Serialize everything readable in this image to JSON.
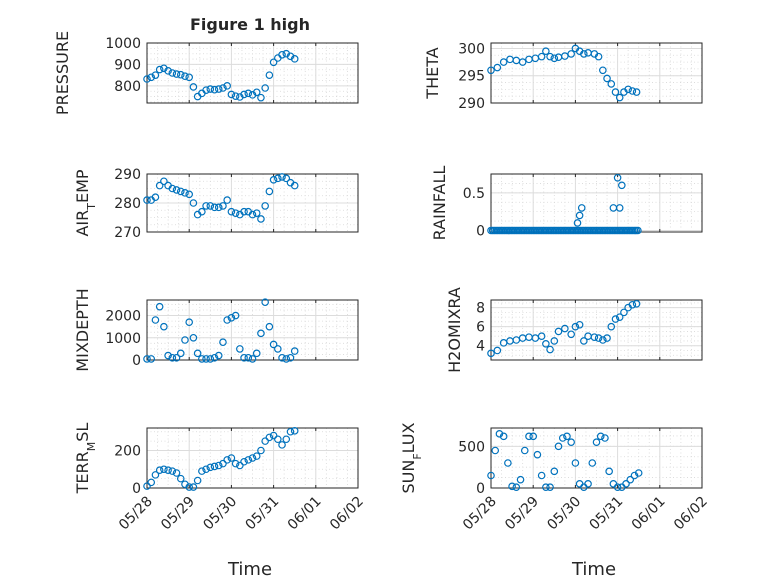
{
  "figure": {
    "title": "Figure 1 high",
    "x_tick_labels": [
      "05/28",
      "05/29",
      "05/30",
      "05/31",
      "06/01",
      "06/02"
    ],
    "x_label": "Time"
  },
  "chart_data": [
    {
      "type": "scatter",
      "ylabel": "PRESSURE",
      "ylim": [
        720,
        1000
      ],
      "yticks": [
        800,
        900,
        1000
      ],
      "xlim_days": [
        "05/28",
        "06/02"
      ],
      "grid": true,
      "minor_grid": true,
      "title": "Figure 1 high",
      "series": [
        {
          "x": [
            0,
            0.1,
            0.2,
            0.3,
            0.4,
            0.5,
            0.6,
            0.7,
            0.8,
            0.9,
            1.0,
            1.1,
            1.2,
            1.3,
            1.4,
            1.5,
            1.6,
            1.7,
            1.8,
            1.9,
            2.0,
            2.1,
            2.2,
            2.3,
            2.4,
            2.5,
            2.6,
            2.7,
            2.8,
            2.9,
            3.0,
            3.1,
            3.2,
            3.3,
            3.4,
            3.5
          ],
          "y": [
            832,
            840,
            850,
            876,
            882,
            870,
            860,
            855,
            852,
            845,
            840,
            795,
            750,
            765,
            780,
            785,
            782,
            785,
            790,
            800,
            760,
            752,
            748,
            760,
            765,
            758,
            770,
            745,
            790,
            850,
            910,
            930,
            945,
            950,
            938,
            926
          ]
        }
      ]
    },
    {
      "type": "scatter",
      "ylabel": "THETA",
      "ylim": [
        290,
        301
      ],
      "yticks": [
        290,
        295,
        300
      ],
      "grid": true,
      "minor_grid": true,
      "series": [
        {
          "x": [
            0,
            0.15,
            0.3,
            0.45,
            0.6,
            0.75,
            0.9,
            1.05,
            1.2,
            1.3,
            1.4,
            1.5,
            1.6,
            1.75,
            1.9,
            2.0,
            2.1,
            2.2,
            2.3,
            2.45,
            2.55,
            2.65,
            2.75,
            2.85,
            2.95,
            3.05,
            3.15,
            3.25,
            3.35,
            3.45
          ],
          "y": [
            296,
            296.5,
            297.5,
            298,
            297.8,
            297.5,
            298,
            298.2,
            298.5,
            299.5,
            298.5,
            298.2,
            298.4,
            298.6,
            299,
            300,
            299.5,
            299,
            299.2,
            299,
            298.5,
            296,
            294.5,
            293.5,
            292,
            291,
            292,
            292.5,
            292.2,
            292
          ]
        }
      ]
    },
    {
      "type": "scatter",
      "ylabel": "AIR_TEMP",
      "ylim": [
        270,
        290
      ],
      "yticks": [
        270,
        280,
        290
      ],
      "grid": true,
      "minor_grid": true,
      "series": [
        {
          "x": [
            0,
            0.1,
            0.2,
            0.3,
            0.4,
            0.5,
            0.6,
            0.7,
            0.8,
            0.9,
            1.0,
            1.1,
            1.2,
            1.3,
            1.4,
            1.5,
            1.6,
            1.7,
            1.8,
            1.9,
            2.0,
            2.1,
            2.2,
            2.3,
            2.4,
            2.5,
            2.6,
            2.7,
            2.8,
            2.9,
            3.0,
            3.1,
            3.2,
            3.3,
            3.4,
            3.5
          ],
          "y": [
            281,
            281,
            282,
            286,
            287.5,
            286,
            285,
            284.5,
            284,
            283.5,
            283,
            280,
            276,
            277,
            279,
            279,
            278.5,
            278.5,
            279,
            281,
            277,
            276.5,
            276,
            277,
            277,
            276,
            276.5,
            274.5,
            279,
            284,
            288,
            288.5,
            289,
            288.5,
            287,
            286
          ]
        }
      ]
    },
    {
      "type": "scatter",
      "ylabel": "RAINFALL",
      "ylim": [
        -0.02,
        0.75
      ],
      "yticks": [
        0,
        0.5
      ],
      "grid": true,
      "minor_grid": true,
      "series": [
        {
          "x": [
            2.05,
            2.1,
            2.15,
            2.9,
            3.0,
            3.05,
            3.1
          ],
          "y": [
            0.1,
            0.2,
            0.3,
            0.3,
            0.7,
            0.3,
            0.6
          ]
        }
      ]
    },
    {
      "type": "scatter",
      "ylabel": "MIXDEPTH",
      "ylim": [
        0,
        2700
      ],
      "yticks": [
        0,
        1000,
        2000
      ],
      "grid": true,
      "minor_grid": true,
      "series": [
        {
          "x": [
            0,
            0.1,
            0.2,
            0.3,
            0.4,
            0.5,
            0.6,
            0.7,
            0.8,
            0.9,
            1.0,
            1.1,
            1.2,
            1.3,
            1.4,
            1.5,
            1.6,
            1.7,
            1.8,
            1.9,
            2.0,
            2.1,
            2.2,
            2.3,
            2.4,
            2.5,
            2.6,
            2.7,
            2.8,
            2.9,
            3.0,
            3.1,
            3.2,
            3.3,
            3.4,
            3.5
          ],
          "y": [
            50,
            50,
            1800,
            2400,
            1500,
            200,
            100,
            100,
            300,
            900,
            1700,
            1000,
            300,
            50,
            50,
            50,
            100,
            200,
            800,
            1800,
            1900,
            2000,
            500,
            100,
            100,
            50,
            300,
            1200,
            2600,
            1500,
            700,
            500,
            100,
            50,
            100,
            400
          ]
        }
      ]
    },
    {
      "type": "scatter",
      "ylabel": "H2OMIXRA",
      "ylim": [
        2.5,
        8.8
      ],
      "yticks": [
        4,
        6,
        8
      ],
      "grid": true,
      "minor_grid": true,
      "series": [
        {
          "x": [
            0,
            0.15,
            0.3,
            0.45,
            0.6,
            0.75,
            0.9,
            1.05,
            1.2,
            1.3,
            1.4,
            1.5,
            1.6,
            1.75,
            1.9,
            2.0,
            2.1,
            2.2,
            2.3,
            2.45,
            2.55,
            2.65,
            2.75,
            2.85,
            2.95,
            3.05,
            3.15,
            3.25,
            3.35,
            3.45
          ],
          "y": [
            3.2,
            3.5,
            4.3,
            4.5,
            4.6,
            4.8,
            4.9,
            4.8,
            5.0,
            4.2,
            3.6,
            4.5,
            5.5,
            5.8,
            5.2,
            6.0,
            6.2,
            4.5,
            5.0,
            4.9,
            4.8,
            4.6,
            4.8,
            6.0,
            6.8,
            7.0,
            7.5,
            8.0,
            8.3,
            8.4
          ]
        }
      ]
    },
    {
      "type": "scatter",
      "ylabel": "TERR_MSL",
      "ylim": [
        0,
        320
      ],
      "yticks": [
        0,
        200
      ],
      "grid": true,
      "minor_grid": true,
      "series": [
        {
          "x": [
            0,
            0.1,
            0.2,
            0.3,
            0.4,
            0.5,
            0.6,
            0.7,
            0.8,
            0.9,
            1.0,
            1.1,
            1.2,
            1.3,
            1.4,
            1.5,
            1.6,
            1.7,
            1.8,
            1.9,
            2.0,
            2.1,
            2.2,
            2.3,
            2.4,
            2.5,
            2.6,
            2.7,
            2.8,
            2.9,
            3.0,
            3.1,
            3.2,
            3.3,
            3.4,
            3.5
          ],
          "y": [
            10,
            30,
            70,
            95,
            100,
            95,
            90,
            80,
            50,
            20,
            5,
            5,
            40,
            90,
            100,
            110,
            115,
            120,
            130,
            150,
            160,
            130,
            120,
            140,
            150,
            160,
            170,
            200,
            250,
            270,
            280,
            260,
            230,
            260,
            300,
            305
          ]
        }
      ]
    },
    {
      "type": "scatter",
      "ylabel": "SUN_FLUX",
      "ylim": [
        0,
        720
      ],
      "yticks": [
        0,
        500
      ],
      "grid": true,
      "minor_grid": true,
      "series": [
        {
          "x": [
            0,
            0.1,
            0.2,
            0.3,
            0.4,
            0.5,
            0.6,
            0.7,
            0.8,
            0.9,
            1.0,
            1.1,
            1.2,
            1.3,
            1.4,
            1.5,
            1.6,
            1.7,
            1.8,
            1.9,
            2.0,
            2.1,
            2.2,
            2.3,
            2.4,
            2.5,
            2.6,
            2.7,
            2.8,
            2.9,
            3.0,
            3.1,
            3.2,
            3.3,
            3.4,
            3.5
          ],
          "y": [
            150,
            450,
            650,
            620,
            300,
            20,
            10,
            100,
            450,
            620,
            620,
            400,
            150,
            10,
            10,
            200,
            500,
            600,
            620,
            550,
            300,
            50,
            10,
            50,
            300,
            550,
            620,
            600,
            200,
            50,
            10,
            10,
            50,
            100,
            150,
            180
          ]
        }
      ]
    }
  ]
}
